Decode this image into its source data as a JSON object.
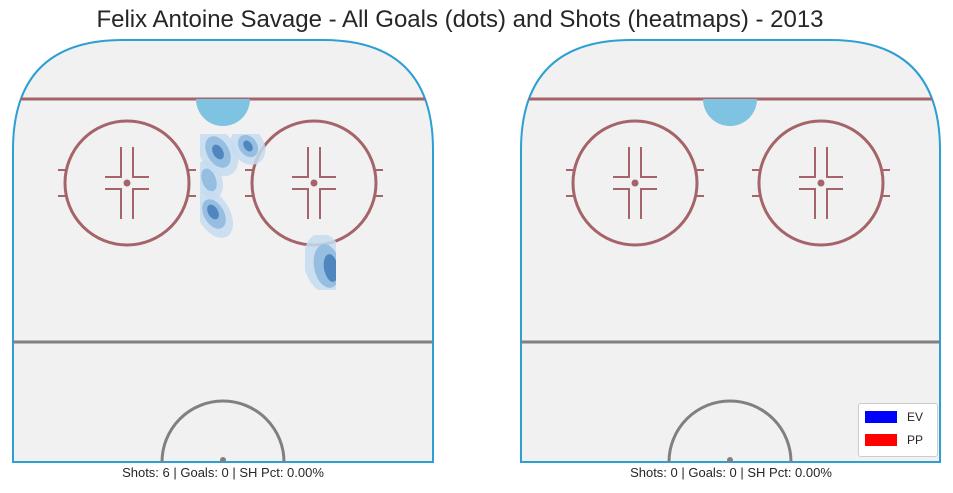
{
  "chart_data": {
    "type": "heatmap",
    "title": "Felix Antoine Savage - All Goals (dots) and Shots (heatmaps) - 2013",
    "panels": [
      {
        "caption": "Shots: 6 | Goals: 0 | SH Pct: 0.00%",
        "shots": 6,
        "goals": 0,
        "sh_pct": "0.00%",
        "goal_dots": [],
        "heat_region": "slot between faceoff circles and right faceoff circle"
      },
      {
        "caption": "Shots: 0 | Goals: 0 | SH Pct: 0.00%",
        "shots": 0,
        "goals": 0,
        "sh_pct": "0.00%",
        "goal_dots": [],
        "heat_region": "none"
      }
    ],
    "legend": {
      "placement": "bottom-right",
      "entries": [
        {
          "label": "EV",
          "color": "#0000ff"
        },
        {
          "label": "PP",
          "color": "#ff0000"
        }
      ]
    }
  },
  "colors": {
    "ice": "#f1f1f1",
    "boards": "#2e9fd3",
    "goal_line": "#a56469",
    "faceoff": "#a56469",
    "crease": "#7ec3e2",
    "blue_line": "#808080",
    "heat_light": "#c6dcf0",
    "heat_mid": "#8fbade",
    "heat_dark": "#4f86be"
  }
}
